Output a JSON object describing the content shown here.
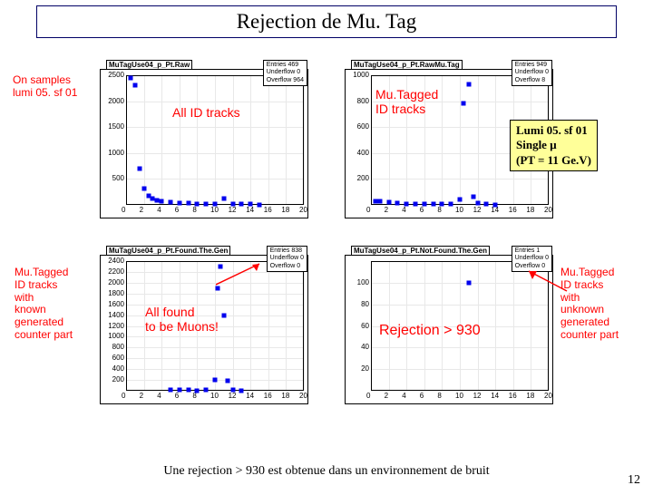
{
  "title": "Rejection de Mu. Tag",
  "bottom_caption": "Une rejection > 930 est obtenue dans un environnement de bruit",
  "page_number": "12",
  "colors": {
    "marker": "#0000ee",
    "anno_text": "#ff0000",
    "box_border": "#000000",
    "box_bg": "#ffff99",
    "grid": "#e8e8e8",
    "title_border": "#000066"
  },
  "info_box": {
    "line1": "Lumi 05. sf 01",
    "line2": "Single μ",
    "line3": "(PT = 11 Ge.V)"
  },
  "side_left_top": {
    "text": "On samples\nlumi 05. sf 01"
  },
  "side_left_bottom": {
    "text": "Mu.Tagged\nID tracks\nwith\nknown\ngenerated\ncounter part"
  },
  "side_right_bottom": {
    "text": "Mu.Tagged\nID tracks\nwith\nunknown\ngenerated\ncounter part"
  },
  "label_all_id": "All ID tracks",
  "label_mutagged": "Mu.Tagged\nID tracks",
  "label_allfound": "All found\nto be Muons!",
  "label_rejection": "Rejection > 930",
  "plots": {
    "tl": {
      "title": "MuTagUse04_p_Pt.Raw",
      "stats": "Entries  469\nUnderflow  0\nOverflow  964",
      "xr": [
        0,
        20
      ],
      "xticks": [
        0,
        2,
        4,
        6,
        8,
        10,
        12,
        14,
        16,
        18,
        20
      ],
      "yr": [
        0,
        2500
      ],
      "yticks": [
        500,
        1000,
        1500,
        2000,
        2500
      ],
      "data": [
        [
          0.5,
          2450
        ],
        [
          1,
          2300
        ],
        [
          1.5,
          700
        ],
        [
          2,
          320
        ],
        [
          2.5,
          180
        ],
        [
          3,
          120
        ],
        [
          3.5,
          90
        ],
        [
          4,
          70
        ],
        [
          5,
          50
        ],
        [
          6,
          40
        ],
        [
          7,
          30
        ],
        [
          8,
          20
        ],
        [
          9,
          18
        ],
        [
          10,
          22
        ],
        [
          11,
          130
        ],
        [
          12,
          25
        ],
        [
          13,
          12
        ],
        [
          14,
          10
        ],
        [
          15,
          8
        ]
      ]
    },
    "tr": {
      "title": "MuTagUse04_p_Pt.RawMu.Tag",
      "stats": "Entries  949\nUnderflow  0\nOverflow  8",
      "xr": [
        0,
        20
      ],
      "xticks": [
        0,
        2,
        4,
        6,
        8,
        10,
        12,
        14,
        16,
        18,
        20
      ],
      "yr": [
        0,
        1000
      ],
      "yticks": [
        200,
        400,
        600,
        800,
        1000
      ],
      "data": [
        [
          0.5,
          30
        ],
        [
          1,
          25
        ],
        [
          2,
          18
        ],
        [
          3,
          12
        ],
        [
          4,
          10
        ],
        [
          5,
          8
        ],
        [
          6,
          7
        ],
        [
          7,
          6
        ],
        [
          8,
          5
        ],
        [
          9,
          5
        ],
        [
          10,
          40
        ],
        [
          10.4,
          780
        ],
        [
          11,
          930
        ],
        [
          11.5,
          60
        ],
        [
          12,
          12
        ],
        [
          13,
          5
        ],
        [
          14,
          3
        ]
      ]
    },
    "bl": {
      "title": "MuTagUse04_p_Pt.Found.The.Gen",
      "stats": "Entries  838\nUnderflow  0\nOverflow  0",
      "xr": [
        0,
        20
      ],
      "xticks": [
        0,
        2,
        4,
        6,
        8,
        10,
        12,
        14,
        16,
        18,
        20
      ],
      "yr": [
        0,
        2400
      ],
      "yticks": [
        200,
        400,
        600,
        800,
        1000,
        1200,
        1400,
        1600,
        1800,
        2000,
        2200,
        2400
      ],
      "data": [
        [
          5,
          20
        ],
        [
          6,
          15
        ],
        [
          7,
          10
        ],
        [
          8,
          8
        ],
        [
          9,
          12
        ],
        [
          10,
          200
        ],
        [
          10.3,
          1900
        ],
        [
          10.6,
          2300
        ],
        [
          11,
          1400
        ],
        [
          11.4,
          180
        ],
        [
          12,
          20
        ],
        [
          13,
          8
        ]
      ]
    },
    "br": {
      "title": "MuTagUse04_p_Pt.Not.Found.The.Gen",
      "stats": "Entries  1\nUnderflow  0\nOverflow  0",
      "xr": [
        0,
        20
      ],
      "xticks": [
        0,
        2,
        4,
        6,
        8,
        10,
        12,
        14,
        16,
        18,
        20
      ],
      "yr": [
        0,
        120
      ],
      "yticks": [
        20,
        40,
        60,
        80,
        100
      ],
      "data": [
        [
          11,
          100
        ]
      ]
    }
  }
}
